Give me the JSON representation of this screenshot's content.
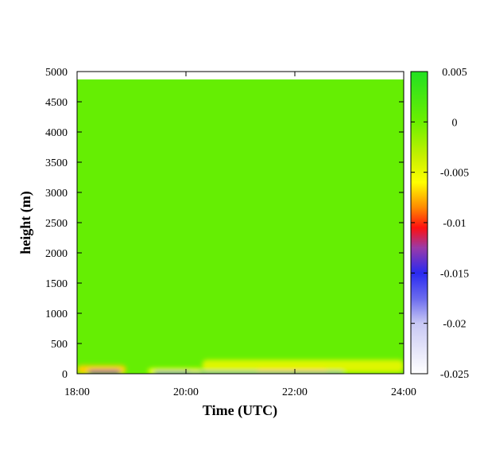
{
  "chart_data": {
    "type": "heatmap",
    "title": "",
    "xlabel": "Time (UTC)",
    "ylabel": "height (m)",
    "x_ticks": [
      "18:00",
      "20:00",
      "22:00",
      "24:00"
    ],
    "x_range_hours": [
      18,
      24
    ],
    "y_ticks": [
      "0",
      "500",
      "1000",
      "1500",
      "2000",
      "2500",
      "3000",
      "3500",
      "4000",
      "4500",
      "5000"
    ],
    "ylim": [
      0,
      5000
    ],
    "data_top_height": 4870,
    "background_value": 0.0005,
    "colorbar": {
      "range": [
        -0.025,
        0.005
      ],
      "tick_labels": [
        "0.005",
        "0",
        "-0.005",
        "-0.01",
        "-0.015",
        "-0.02",
        "-0.025"
      ],
      "tick_values": [
        0.005,
        0,
        -0.005,
        -0.01,
        -0.015,
        -0.02,
        -0.025
      ],
      "color_stops": [
        {
          "value": -0.025,
          "color": "#ffffff"
        },
        {
          "value": -0.02,
          "color": "#c8c8f4"
        },
        {
          "value": -0.0175,
          "color": "#6a6aee"
        },
        {
          "value": -0.015,
          "color": "#2a2af0"
        },
        {
          "value": -0.0125,
          "color": "#9a3aa8"
        },
        {
          "value": -0.0105,
          "color": "#ff1010"
        },
        {
          "value": -0.0085,
          "color": "#ff8a00"
        },
        {
          "value": -0.006,
          "color": "#ffff00"
        },
        {
          "value": -0.0035,
          "color": "#c8f000"
        },
        {
          "value": 0,
          "color": "#6cf000"
        },
        {
          "value": 0.005,
          "color": "#22e022"
        }
      ]
    },
    "near_surface_features": [
      {
        "t0": 18.0,
        "t1": 18.9,
        "h_bottom": 0,
        "h_top": 140,
        "value": -0.007
      },
      {
        "t0": 18.2,
        "t1": 18.8,
        "h_bottom": 0,
        "h_top": 60,
        "value": -0.0125
      },
      {
        "t0": 19.3,
        "t1": 20.3,
        "h_bottom": 0,
        "h_top": 90,
        "value": -0.006
      },
      {
        "t0": 19.4,
        "t1": 20.1,
        "h_bottom": 0,
        "h_top": 40,
        "value": -0.016
      },
      {
        "t0": 20.3,
        "t1": 24.0,
        "h_bottom": 20,
        "h_top": 230,
        "value": -0.0045
      },
      {
        "t0": 21.3,
        "t1": 22.6,
        "h_bottom": 0,
        "h_top": 90,
        "value": -0.0065
      },
      {
        "t0": 20.0,
        "t1": 22.9,
        "h_bottom": 0,
        "h_top": 30,
        "value": -0.017
      }
    ]
  }
}
